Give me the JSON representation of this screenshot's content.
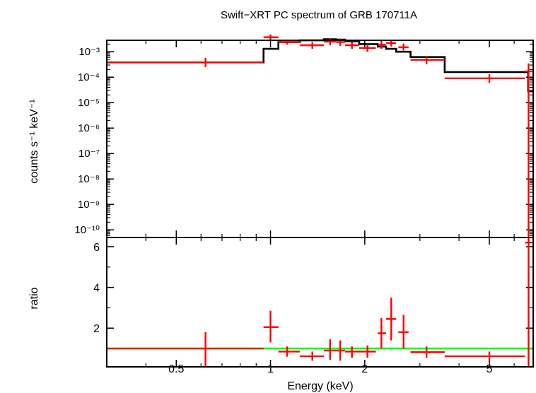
{
  "colors": {
    "data": "#ff0000",
    "model": "#000000",
    "unity": "#00ff00",
    "axis": "#000000"
  },
  "chart_data": {
    "type": "scatter",
    "title": "Swift−XRT PC spectrum of GRB 170711A",
    "xlabel": "Energy (keV)",
    "xscale": "log",
    "xlim": [
      0.3,
      6.9
    ],
    "xticks": [
      {
        "value": 0.5,
        "label": "0.5"
      },
      {
        "value": 1,
        "label": "1"
      },
      {
        "value": 2,
        "label": "2"
      },
      {
        "value": 5,
        "label": "5"
      }
    ],
    "top_panel": {
      "ylabel": "counts s⁻¹ keV⁻¹",
      "yscale": "log",
      "ylim_exp": [
        -10.3,
        -2.55
      ],
      "yticks": [
        {
          "exp": -3,
          "label": "10⁻³"
        },
        {
          "exp": -4,
          "label": "10⁻⁴"
        },
        {
          "exp": -5,
          "label": "10⁻⁵"
        },
        {
          "exp": -6,
          "label": "10⁻⁶"
        },
        {
          "exp": -7,
          "label": "10⁻⁷"
        },
        {
          "exp": -8,
          "label": "10⁻⁸"
        },
        {
          "exp": -9,
          "label": "10⁻⁹"
        },
        {
          "exp": -10,
          "label": "10⁻¹⁰"
        }
      ],
      "data": [
        {
          "x": 0.62,
          "xlo": 0.3,
          "xhi": 0.95,
          "y": 0.00038,
          "ylo": 0.00025,
          "yhi": 0.00058
        },
        {
          "x": 1.0,
          "xlo": 0.95,
          "xhi": 1.06,
          "y": 0.0037,
          "ylo": 0.0029,
          "yhi": 0.0048
        },
        {
          "x": 1.13,
          "xlo": 1.06,
          "xhi": 1.24,
          "y": 0.0024,
          "ylo": 0.0019,
          "yhi": 0.003
        },
        {
          "x": 1.36,
          "xlo": 1.24,
          "xhi": 1.48,
          "y": 0.0018,
          "ylo": 0.0013,
          "yhi": 0.0024
        },
        {
          "x": 1.55,
          "xlo": 1.48,
          "xhi": 1.62,
          "y": 0.0025,
          "ylo": 0.0018,
          "yhi": 0.0034
        },
        {
          "x": 1.67,
          "xlo": 1.62,
          "xhi": 1.73,
          "y": 0.0024,
          "ylo": 0.0017,
          "yhi": 0.0033
        },
        {
          "x": 1.82,
          "xlo": 1.73,
          "xhi": 1.92,
          "y": 0.0018,
          "ylo": 0.0013,
          "yhi": 0.0025
        },
        {
          "x": 2.04,
          "xlo": 1.92,
          "xhi": 2.17,
          "y": 0.0014,
          "ylo": 0.001,
          "yhi": 0.002
        },
        {
          "x": 2.26,
          "xlo": 2.2,
          "xhi": 2.34,
          "y": 0.0019,
          "ylo": 0.0013,
          "yhi": 0.0027
        },
        {
          "x": 2.43,
          "xlo": 2.34,
          "xhi": 2.52,
          "y": 0.0022,
          "ylo": 0.0016,
          "yhi": 0.003
        },
        {
          "x": 2.66,
          "xlo": 2.56,
          "xhi": 2.76,
          "y": 0.0015,
          "ylo": 0.0011,
          "yhi": 0.0021
        },
        {
          "x": 3.15,
          "xlo": 2.8,
          "xhi": 3.6,
          "y": 0.00048,
          "ylo": 0.00032,
          "yhi": 0.00068
        },
        {
          "x": 5.0,
          "xlo": 3.6,
          "xhi": 6.5,
          "y": 9e-05,
          "ylo": 6e-05,
          "yhi": 0.00013
        },
        {
          "x": 6.67,
          "xlo": 6.5,
          "xhi": 6.85,
          "y": 0.00017,
          "ylo": 5e-11,
          "yhi": 0.00035
        }
      ],
      "model_steps": [
        [
          0.3,
          0.00038
        ],
        [
          0.95,
          0.00038
        ],
        [
          0.95,
          0.0013
        ],
        [
          1.06,
          0.0013
        ],
        [
          1.06,
          0.0024
        ],
        [
          1.24,
          0.0024
        ],
        [
          1.24,
          0.0028
        ],
        [
          1.48,
          0.0028
        ],
        [
          1.48,
          0.0031
        ],
        [
          1.62,
          0.0031
        ],
        [
          1.62,
          0.003
        ],
        [
          1.73,
          0.003
        ],
        [
          1.73,
          0.0026
        ],
        [
          1.92,
          0.0026
        ],
        [
          1.92,
          0.002
        ],
        [
          2.2,
          0.002
        ],
        [
          2.2,
          0.0016
        ],
        [
          2.34,
          0.0016
        ],
        [
          2.34,
          0.0013
        ],
        [
          2.52,
          0.0013
        ],
        [
          2.52,
          0.001
        ],
        [
          2.8,
          0.001
        ],
        [
          2.8,
          0.00062
        ],
        [
          3.6,
          0.00062
        ],
        [
          3.6,
          0.00016
        ],
        [
          6.65,
          0.00016
        ],
        [
          6.65,
          2.8e-05
        ],
        [
          6.9,
          2.8e-05
        ]
      ]
    },
    "bottom_panel": {
      "ylabel": "ratio",
      "ylim": [
        0.1,
        6.45
      ],
      "yticks": [
        {
          "value": 2,
          "label": "2"
        },
        {
          "value": 4,
          "label": "4"
        },
        {
          "value": 6,
          "label": "6"
        }
      ],
      "unity": 1,
      "data": [
        {
          "x": 0.62,
          "xlo": 0.3,
          "xhi": 0.95,
          "y": 1.0,
          "ylo": 0.13,
          "yhi": 1.8
        },
        {
          "x": 1.0,
          "xlo": 0.95,
          "xhi": 1.06,
          "y": 2.05,
          "ylo": 1.3,
          "yhi": 2.85
        },
        {
          "x": 1.13,
          "xlo": 1.06,
          "xhi": 1.24,
          "y": 0.85,
          "ylo": 0.6,
          "yhi": 1.1
        },
        {
          "x": 1.36,
          "xlo": 1.24,
          "xhi": 1.48,
          "y": 0.62,
          "ylo": 0.4,
          "yhi": 0.85
        },
        {
          "x": 1.55,
          "xlo": 1.48,
          "xhi": 1.62,
          "y": 0.9,
          "ylo": 0.45,
          "yhi": 1.45
        },
        {
          "x": 1.67,
          "xlo": 1.62,
          "xhi": 1.73,
          "y": 0.9,
          "ylo": 0.4,
          "yhi": 1.4
        },
        {
          "x": 1.82,
          "xlo": 1.73,
          "xhi": 1.92,
          "y": 0.85,
          "ylo": 0.55,
          "yhi": 1.1
        },
        {
          "x": 2.04,
          "xlo": 1.92,
          "xhi": 2.17,
          "y": 0.85,
          "ylo": 0.55,
          "yhi": 1.15
        },
        {
          "x": 2.26,
          "xlo": 2.2,
          "xhi": 2.34,
          "y": 1.75,
          "ylo": 1.0,
          "yhi": 2.5
        },
        {
          "x": 2.43,
          "xlo": 2.34,
          "xhi": 2.52,
          "y": 2.45,
          "ylo": 1.4,
          "yhi": 3.5
        },
        {
          "x": 2.66,
          "xlo": 2.56,
          "xhi": 2.76,
          "y": 1.8,
          "ylo": 1.0,
          "yhi": 2.65
        },
        {
          "x": 3.15,
          "xlo": 2.8,
          "xhi": 3.6,
          "y": 0.82,
          "ylo": 0.55,
          "yhi": 1.1
        },
        {
          "x": 5.0,
          "xlo": 3.6,
          "xhi": 6.5,
          "y": 0.62,
          "ylo": 0.4,
          "yhi": 0.85
        },
        {
          "x": 6.67,
          "xlo": 6.5,
          "xhi": 6.85,
          "y": 6.2,
          "ylo": 0.1,
          "yhi": 6.45
        }
      ]
    }
  }
}
